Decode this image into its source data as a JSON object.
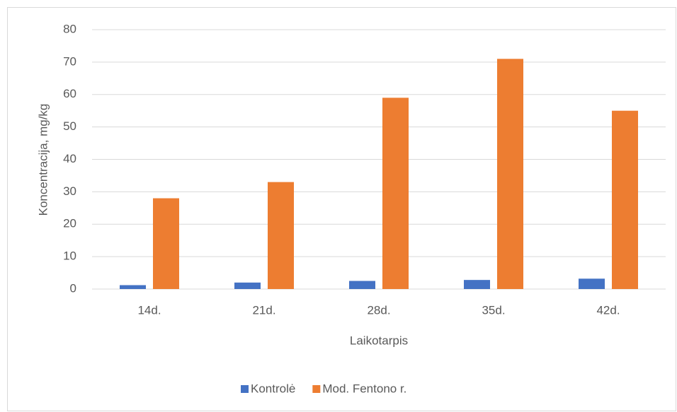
{
  "chart_data": {
    "type": "bar",
    "categories": [
      "14d.",
      "21d.",
      "28d.",
      "35d.",
      "42d."
    ],
    "series": [
      {
        "name": "Kontrolė",
        "color": "#4472c4",
        "values": [
          1.2,
          2,
          2.5,
          2.8,
          3.2
        ]
      },
      {
        "name": "Mod. Fentono r.",
        "color": "#ed7d31",
        "values": [
          28,
          33,
          59,
          71,
          55
        ]
      }
    ],
    "x_label": "Laikotarpis",
    "y_label": "Koncentracija, mg/kg",
    "ylim": [
      0,
      80
    ],
    "yticks": [
      0,
      10,
      20,
      30,
      40,
      50,
      60,
      70,
      80
    ],
    "grid": true,
    "legend": "bottom"
  }
}
